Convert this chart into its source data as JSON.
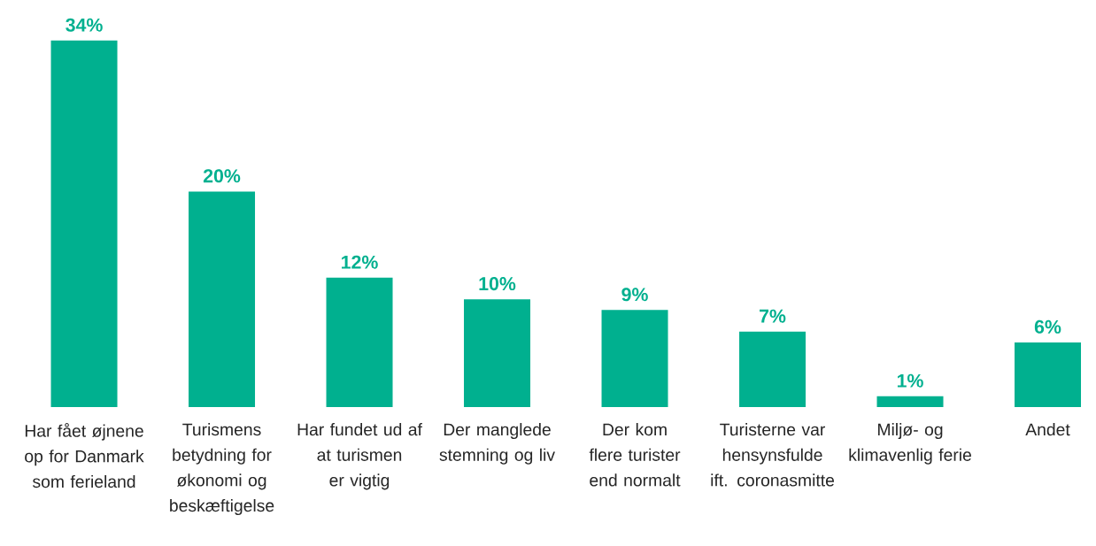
{
  "chart_data": {
    "type": "bar",
    "categories": [
      "Har fået øjnene op for Danmark som ferieland",
      "Turismens betydning for økonomi og beskæftigelse",
      "Har fundet ud af at turismen er vigtig",
      "Der manglede stemning og liv",
      "Der kom flere turister end normalt",
      "Turisterne var hensynsfulde ift. coronasmitte",
      "Miljø- og klimavenlig ferie",
      "Andet"
    ],
    "values": [
      34,
      20,
      12,
      10,
      9,
      7,
      1,
      6
    ],
    "value_labels": [
      "34%",
      "20%",
      "12%",
      "10%",
      "9%",
      "7%",
      "1%",
      "6%"
    ],
    "color": "#00b08f"
  }
}
